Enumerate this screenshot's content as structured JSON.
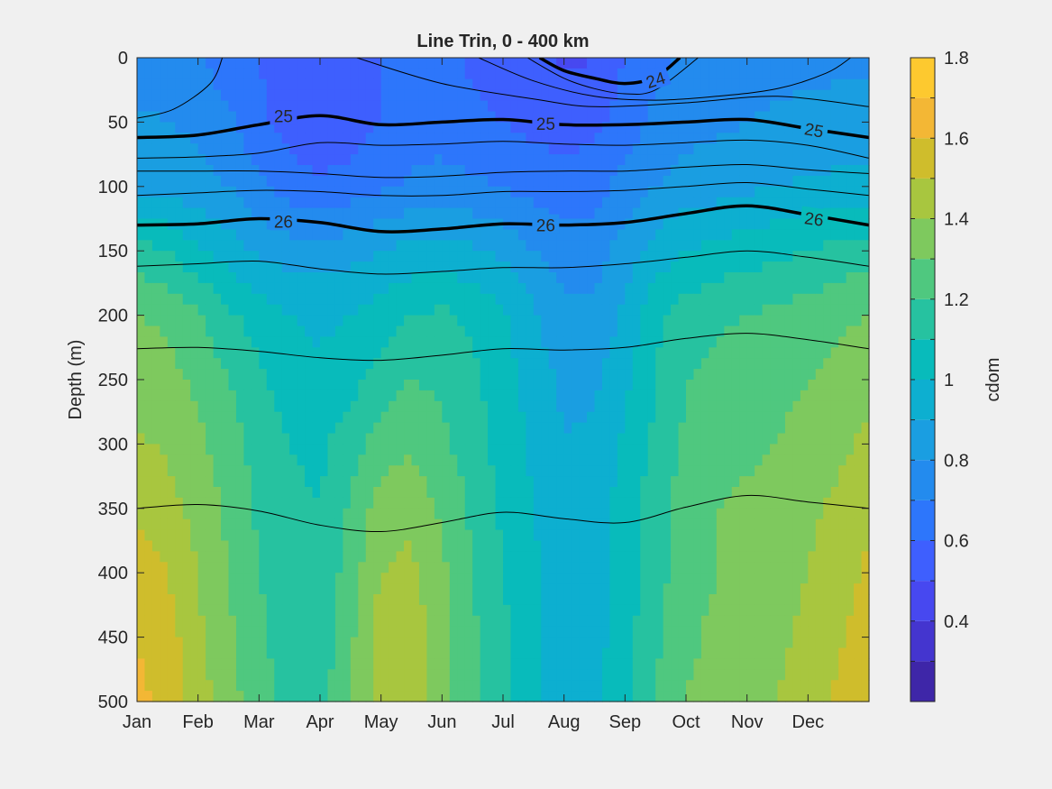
{
  "chart_data": {
    "type": "heatmap",
    "title": "Line Trin, 0 - 400 km",
    "xlabel": "",
    "ylabel": "Depth (m)",
    "xlim": [
      0,
      12
    ],
    "ylim": [
      0,
      500
    ],
    "y_reversed": true,
    "x_ticks": [
      {
        "label": "Jan",
        "value": 0
      },
      {
        "label": "Feb",
        "value": 1
      },
      {
        "label": "Mar",
        "value": 2
      },
      {
        "label": "Apr",
        "value": 3
      },
      {
        "label": "May",
        "value": 4
      },
      {
        "label": "Jun",
        "value": 5
      },
      {
        "label": "Jul",
        "value": 6
      },
      {
        "label": "Aug",
        "value": 7
      },
      {
        "label": "Sep",
        "value": 8
      },
      {
        "label": "Oct",
        "value": 9
      },
      {
        "label": "Nov",
        "value": 10
      },
      {
        "label": "Dec",
        "value": 11
      }
    ],
    "y_ticks": [
      0,
      50,
      100,
      150,
      200,
      250,
      300,
      350,
      400,
      450,
      500
    ],
    "colorbar": {
      "label": "cdom",
      "levels": [
        0.2,
        0.3,
        0.4,
        0.5,
        0.6,
        0.7,
        0.8,
        0.9,
        1.0,
        1.1,
        1.2,
        1.3,
        1.4,
        1.5,
        1.6,
        1.7,
        1.8
      ],
      "tick_labels": [
        "0.4",
        "0.6",
        "0.8",
        "1",
        "1.2",
        "1.4",
        "1.6",
        "1.8"
      ],
      "tick_values": [
        0.4,
        0.6,
        0.8,
        1.0,
        1.2,
        1.4,
        1.6,
        1.8
      ],
      "colors": [
        "#3e26a8",
        "#4435cf",
        "#4748f0",
        "#3e5ffe",
        "#2d76fb",
        "#238bee",
        "#1a9ee1",
        "#0dafd0",
        "#08bbbb",
        "#26c2a0",
        "#4fc87f",
        "#7ec95e",
        "#a8c63f",
        "#cfbd2c",
        "#f3b735",
        "#fdc92f",
        "#f5e21c"
      ]
    },
    "cdom_grid": {
      "months": [
        0,
        0.5,
        1,
        1.5,
        2,
        2.5,
        3,
        3.5,
        4,
        4.5,
        5,
        5.5,
        6,
        6.5,
        7,
        7.5,
        8,
        8.5,
        9,
        9.5,
        10,
        10.5,
        11,
        11.5,
        12
      ],
      "depths": [
        0,
        50,
        100,
        150,
        200,
        250,
        300,
        350,
        400,
        450,
        500
      ],
      "values": [
        [
          0.75,
          0.72,
          0.7,
          0.65,
          0.6,
          0.55,
          0.52,
          0.55,
          0.6,
          0.62,
          0.63,
          0.58,
          0.55,
          0.52,
          0.48,
          0.5,
          0.6,
          0.68,
          0.72,
          0.73,
          0.74,
          0.75,
          0.76,
          0.77,
          0.78
        ],
        [
          0.82,
          0.8,
          0.78,
          0.72,
          0.62,
          0.55,
          0.52,
          0.55,
          0.6,
          0.63,
          0.65,
          0.62,
          0.6,
          0.57,
          0.55,
          0.57,
          0.65,
          0.72,
          0.76,
          0.78,
          0.8,
          0.82,
          0.84,
          0.85,
          0.86
        ],
        [
          0.88,
          0.86,
          0.84,
          0.8,
          0.72,
          0.65,
          0.62,
          0.64,
          0.68,
          0.72,
          0.74,
          0.72,
          0.7,
          0.66,
          0.64,
          0.66,
          0.74,
          0.8,
          0.84,
          0.86,
          0.88,
          0.9,
          0.91,
          0.92,
          0.92
        ],
        [
          1.15,
          1.1,
          1.02,
          0.95,
          0.88,
          0.85,
          0.84,
          0.86,
          0.9,
          0.93,
          0.95,
          0.92,
          0.88,
          0.8,
          0.75,
          0.76,
          0.84,
          0.94,
          1.0,
          1.03,
          1.05,
          1.08,
          1.1,
          1.13,
          1.16
        ],
        [
          1.3,
          1.28,
          1.22,
          1.12,
          1.05,
          1.0,
          0.98,
          1.0,
          1.05,
          1.1,
          1.12,
          1.08,
          1.02,
          0.92,
          0.82,
          0.82,
          0.92,
          1.08,
          1.15,
          1.18,
          1.2,
          1.22,
          1.25,
          1.28,
          1.3
        ],
        [
          1.35,
          1.33,
          1.28,
          1.2,
          1.12,
          1.05,
          1.02,
          1.06,
          1.15,
          1.2,
          1.18,
          1.12,
          1.05,
          0.95,
          0.88,
          0.88,
          0.98,
          1.1,
          1.2,
          1.23,
          1.25,
          1.27,
          1.3,
          1.33,
          1.36
        ],
        [
          1.42,
          1.38,
          1.32,
          1.25,
          1.15,
          1.1,
          1.08,
          1.15,
          1.25,
          1.28,
          1.22,
          1.15,
          1.06,
          0.98,
          0.9,
          0.92,
          1.02,
          1.12,
          1.22,
          1.26,
          1.28,
          1.3,
          1.34,
          1.38,
          1.42
        ],
        [
          1.48,
          1.44,
          1.36,
          1.28,
          1.18,
          1.12,
          1.1,
          1.22,
          1.35,
          1.38,
          1.28,
          1.18,
          1.08,
          1.0,
          0.92,
          0.94,
          1.05,
          1.15,
          1.25,
          1.3,
          1.32,
          1.34,
          1.38,
          1.42,
          1.48
        ],
        [
          1.55,
          1.5,
          1.4,
          1.3,
          1.2,
          1.14,
          1.12,
          1.25,
          1.4,
          1.42,
          1.32,
          1.2,
          1.1,
          1.02,
          0.94,
          0.95,
          1.05,
          1.16,
          1.26,
          1.3,
          1.33,
          1.36,
          1.4,
          1.45,
          1.52
        ],
        [
          1.6,
          1.55,
          1.42,
          1.32,
          1.22,
          1.15,
          1.14,
          1.28,
          1.45,
          1.46,
          1.34,
          1.22,
          1.12,
          1.02,
          0.95,
          0.96,
          1.06,
          1.18,
          1.28,
          1.32,
          1.34,
          1.38,
          1.42,
          1.48,
          1.56
        ],
        [
          1.62,
          1.58,
          1.45,
          1.34,
          1.24,
          1.16,
          1.15,
          1.3,
          1.45,
          1.46,
          1.34,
          1.22,
          1.12,
          1.02,
          0.95,
          0.97,
          1.08,
          1.2,
          1.3,
          1.34,
          1.36,
          1.4,
          1.45,
          1.52,
          1.6
        ]
      ]
    },
    "contours": [
      {
        "label": "24",
        "bold": true,
        "months": [
          6.6,
          7.0,
          7.5,
          8.0,
          8.5,
          8.9
        ],
        "depths": [
          0,
          10,
          16,
          20,
          15,
          0
        ]
      },
      {
        "label": "",
        "bold": false,
        "months": [
          6.4,
          7.0,
          7.5,
          8.0,
          8.5,
          9.2
        ],
        "depths": [
          0,
          16,
          24,
          28,
          25,
          0
        ]
      },
      {
        "label": "",
        "bold": false,
        "months": [
          0,
          0.6,
          1.2,
          1.4
        ],
        "depths": [
          47,
          40,
          20,
          0
        ]
      },
      {
        "label": "",
        "bold": false,
        "months": [
          5.6,
          6.5,
          7.5,
          8.5,
          9.5,
          10.5,
          11.3,
          11.7
        ],
        "depths": [
          0,
          18,
          30,
          33,
          30,
          24,
          12,
          0
        ]
      },
      {
        "label": "",
        "bold": false,
        "months": [
          3.6,
          5.0,
          6.5,
          7.5,
          9.0,
          10.5,
          12.0
        ],
        "depths": [
          0,
          20,
          32,
          38,
          35,
          30,
          38
        ]
      },
      {
        "label": "25",
        "bold": true,
        "months": [
          0,
          1,
          2,
          3,
          4,
          5,
          6,
          7,
          8,
          9,
          10,
          11,
          12
        ],
        "depths": [
          62,
          60,
          52,
          45,
          52,
          50,
          48,
          52,
          52,
          50,
          48,
          55,
          62
        ]
      },
      {
        "label": "",
        "bold": false,
        "months": [
          0,
          1,
          2,
          3,
          4,
          5,
          6,
          7,
          8,
          9,
          10,
          11,
          12
        ],
        "depths": [
          78,
          77,
          74,
          66,
          68,
          67,
          65,
          67,
          68,
          66,
          64,
          68,
          78
        ]
      },
      {
        "label": "",
        "bold": false,
        "months": [
          0,
          1,
          2,
          3,
          4,
          5,
          6,
          7,
          8,
          9,
          10,
          11,
          12
        ],
        "depths": [
          88,
          88,
          88,
          90,
          93,
          92,
          89,
          88,
          88,
          85,
          83,
          87,
          90
        ]
      },
      {
        "label": "",
        "bold": false,
        "months": [
          0,
          1,
          2,
          3,
          4,
          5,
          6,
          7,
          8,
          9,
          10,
          11,
          12
        ],
        "depths": [
          107,
          105,
          103,
          104,
          107,
          107,
          104,
          104,
          103,
          100,
          97,
          102,
          107
        ]
      },
      {
        "label": "26",
        "bold": true,
        "months": [
          0,
          1,
          2,
          3,
          4,
          5,
          6,
          7,
          8,
          9,
          10,
          11,
          12
        ],
        "depths": [
          130,
          129,
          125,
          128,
          135,
          133,
          129,
          130,
          128,
          121,
          115,
          122,
          130
        ]
      },
      {
        "label": "",
        "bold": false,
        "months": [
          0,
          1,
          2,
          3,
          4,
          5,
          6,
          7,
          8,
          9,
          10,
          11,
          12
        ],
        "depths": [
          162,
          160,
          158,
          164,
          168,
          166,
          163,
          163,
          160,
          155,
          150,
          155,
          162
        ]
      },
      {
        "label": "",
        "bold": false,
        "months": [
          0,
          1,
          2,
          3,
          4,
          5,
          6,
          7,
          8,
          9,
          10,
          11,
          12
        ],
        "depths": [
          226,
          225,
          228,
          233,
          235,
          231,
          226,
          227,
          225,
          218,
          214,
          219,
          226
        ]
      },
      {
        "label": "",
        "bold": false,
        "months": [
          0,
          1,
          2,
          3,
          4,
          5,
          6,
          7,
          8,
          9,
          10,
          11,
          12
        ],
        "depths": [
          350,
          347,
          352,
          363,
          368,
          361,
          353,
          358,
          361,
          349,
          340,
          345,
          350
        ]
      }
    ],
    "contour_labels": [
      {
        "text": "24",
        "month": 8.5,
        "depth": 17,
        "angle": -18
      },
      {
        "text": "25",
        "month": 2.4,
        "depth": 45,
        "angle": 0
      },
      {
        "text": "25",
        "month": 6.7,
        "depth": 51,
        "angle": 0
      },
      {
        "text": "25",
        "month": 11.1,
        "depth": 56,
        "angle": 10
      },
      {
        "text": "26",
        "month": 2.4,
        "depth": 127,
        "angle": 0
      },
      {
        "text": "26",
        "month": 6.7,
        "depth": 130,
        "angle": 0
      },
      {
        "text": "26",
        "month": 11.1,
        "depth": 125,
        "angle": 8
      }
    ]
  }
}
